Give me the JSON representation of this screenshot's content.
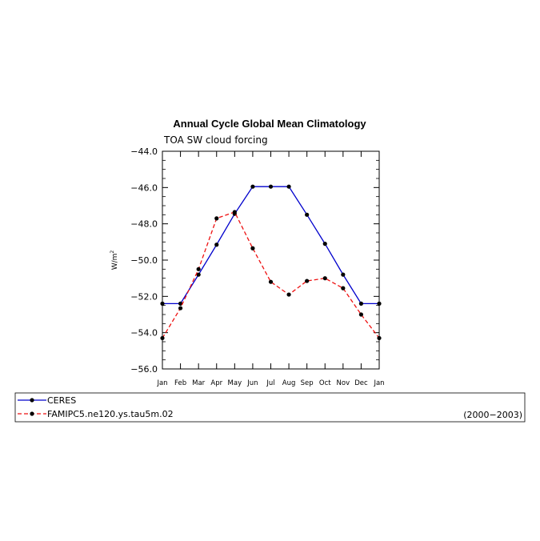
{
  "chart_data": {
    "type": "line",
    "title": "Annual Cycle Global Mean Climatology",
    "subtitle": "TOA SW cloud forcing",
    "ylabel": "W/m",
    "ylabel_superscript": "2",
    "xlabel": "",
    "categories": [
      "Jan",
      "Feb",
      "Mar",
      "Apr",
      "May",
      "Jun",
      "Jul",
      "Aug",
      "Sep",
      "Oct",
      "Nov",
      "Dec",
      "Jan"
    ],
    "ylim": [
      -56.0,
      -44.0
    ],
    "yticks": [
      -44.0,
      -46.0,
      -48.0,
      -50.0,
      -52.0,
      -54.0,
      -56.0
    ],
    "ytick_labels": [
      "−44.0",
      "−46.0",
      "−48.0",
      "−50.0",
      "−52.0",
      "−54.0",
      "−56.0"
    ],
    "series": [
      {
        "name": "CERES",
        "color": "#0000cc",
        "dash": "solid",
        "values": [
          -52.4,
          -52.4,
          -50.8,
          -49.15,
          -47.45,
          -45.95,
          -45.95,
          -45.95,
          -47.5,
          -49.1,
          -50.8,
          -52.4,
          -52.4
        ]
      },
      {
        "name": "FAMIPC5.ne120.ys.tau5m.02",
        "color": "#ee1111",
        "dash": "dashed",
        "values": [
          -54.3,
          -52.65,
          -50.5,
          -47.7,
          -47.35,
          -49.35,
          -51.2,
          -51.9,
          -51.15,
          -51.0,
          -51.55,
          -53.0,
          -54.3
        ]
      }
    ],
    "legend": {
      "placement": "bottom",
      "period": "(2000−2003)"
    }
  }
}
